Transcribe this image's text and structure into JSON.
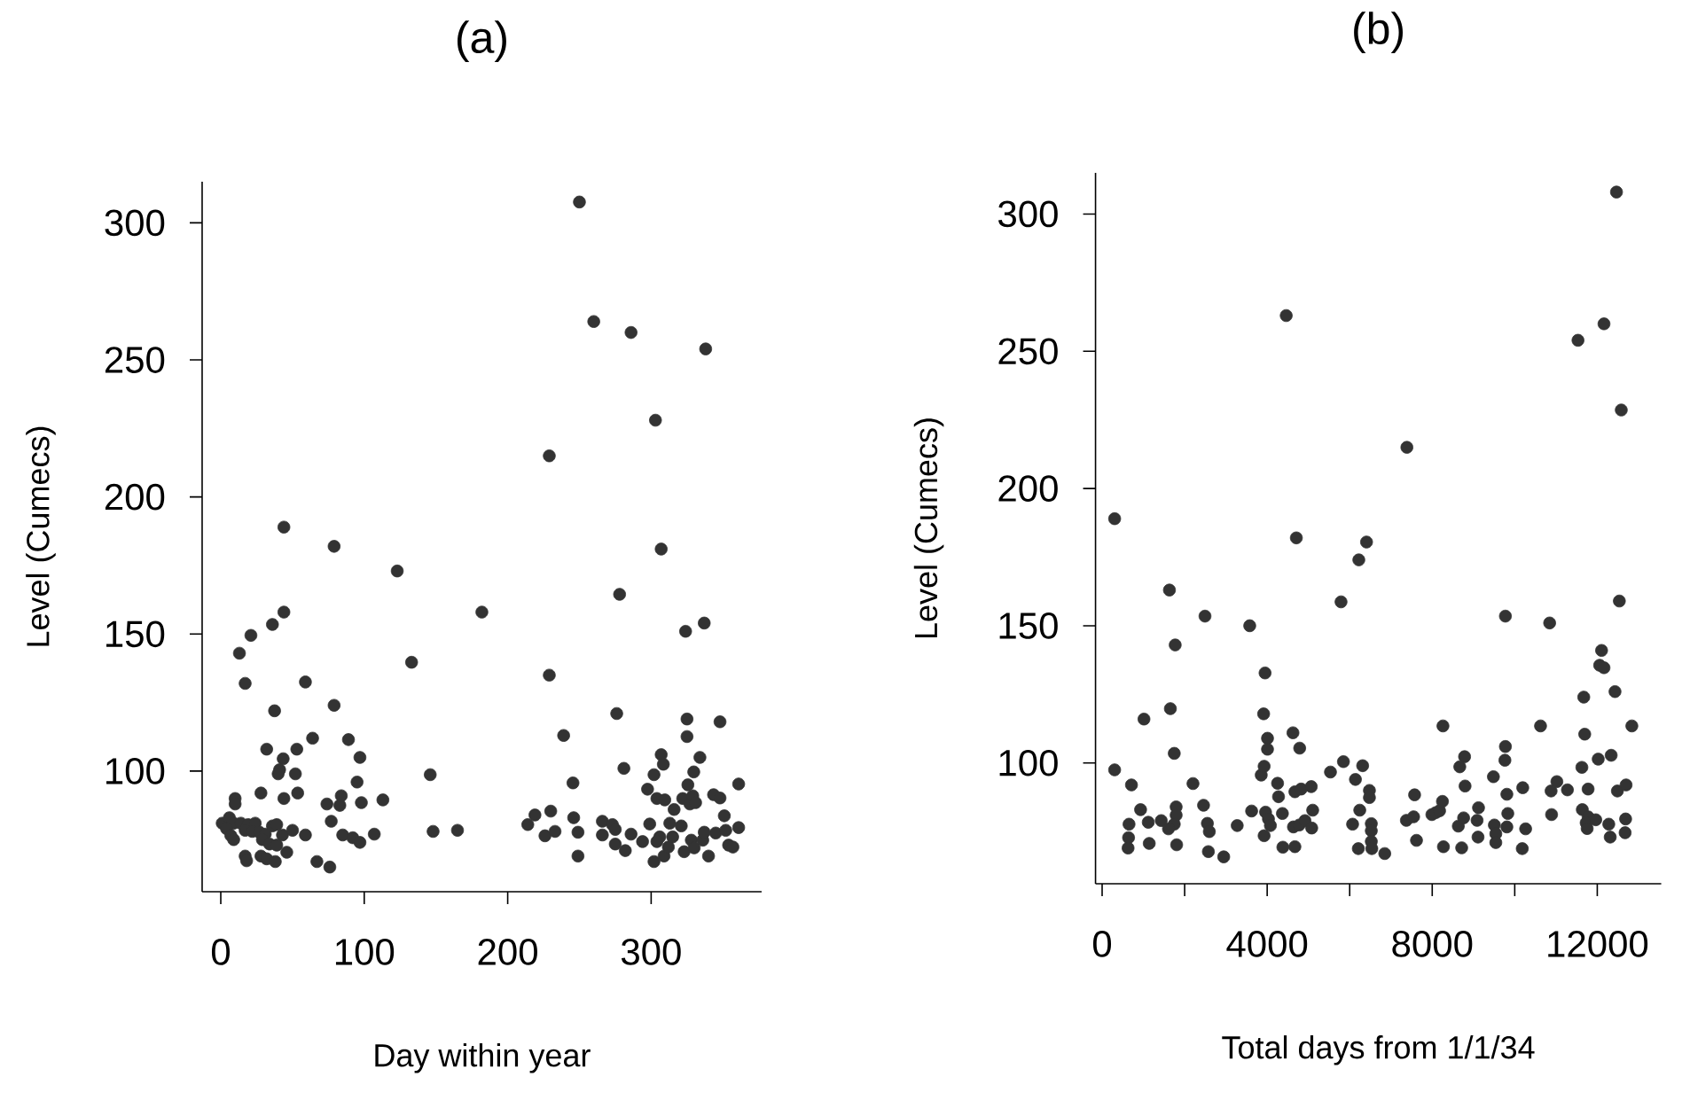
{
  "chart_data": [
    {
      "type": "scatter",
      "title": "(a)",
      "xlabel": "Day within year",
      "ylabel": "Level (Cumecs)",
      "color": "#333333",
      "marker": "circle",
      "xlim": [
        -13,
        377
      ],
      "ylim": [
        56,
        315
      ],
      "xticks": [
        0,
        100,
        200,
        300
      ],
      "yticks": [
        100,
        150,
        200,
        250,
        300
      ],
      "x": [
        250,
        260,
        286,
        338,
        303,
        229,
        44,
        79,
        123,
        307,
        278,
        44,
        182,
        36,
        21,
        13,
        17,
        59,
        37.5,
        79,
        133,
        229,
        239,
        276,
        324,
        337,
        325,
        348,
        325,
        32,
        64,
        53,
        89,
        43.5,
        41,
        40,
        52,
        97,
        95,
        146,
        245.5,
        281,
        307,
        308.5,
        302,
        334,
        329.7,
        325.6,
        361,
        28,
        10,
        10,
        44,
        53.6,
        74,
        84,
        83,
        98,
        113,
        77,
        59,
        107,
        85,
        92,
        97,
        67,
        76,
        148,
        165,
        1,
        6,
        9,
        4,
        7,
        9,
        14,
        19,
        24,
        17,
        22,
        27,
        31,
        36,
        39,
        29,
        34,
        39,
        43,
        46,
        50,
        17,
        18,
        28,
        32,
        38,
        214,
        219,
        230,
        226,
        233,
        246,
        249,
        249,
        266,
        273,
        275,
        266,
        275,
        282,
        286,
        294,
        299,
        297.5,
        304,
        309.5,
        306,
        304,
        302,
        309,
        312,
        313,
        315,
        316,
        321,
        322,
        327,
        329,
        331,
        323,
        328,
        330,
        336,
        337,
        340,
        343.5,
        348,
        345,
        351,
        352,
        354,
        357,
        361
      ],
      "values": [
        307.6,
        264,
        260,
        254,
        228,
        215,
        189,
        182,
        173,
        181,
        164.5,
        158,
        158,
        153.5,
        149.5,
        143,
        132,
        132.5,
        122,
        124,
        139.7,
        135,
        113,
        121,
        151,
        154,
        119,
        118,
        112.6,
        108,
        112,
        108,
        111.5,
        104.5,
        100.5,
        99,
        99,
        105,
        96,
        98.7,
        95.7,
        101,
        106,
        102.5,
        98.7,
        105,
        99.7,
        95,
        95.3,
        92,
        90,
        88,
        90,
        92,
        88,
        91,
        87.5,
        88.5,
        89.5,
        81.7,
        76.7,
        77,
        76.7,
        75.7,
        74,
        67,
        65,
        78,
        78.4,
        81,
        83,
        81,
        79,
        76.5,
        75,
        81,
        80.5,
        81,
        78.4,
        78,
        77.7,
        77,
        80,
        80.5,
        75,
        73.4,
        73,
        76.7,
        70.4,
        78.4,
        69,
        67.3,
        69,
        68,
        67,
        80.5,
        84,
        85.4,
        76.4,
        78,
        83,
        77.7,
        69,
        81.7,
        80.5,
        78.7,
        76.7,
        73.4,
        71,
        77,
        74.3,
        80.7,
        93.4,
        90,
        89.5,
        76,
        74.3,
        67,
        69,
        72.3,
        81,
        76,
        86,
        80,
        90,
        88,
        91,
        88.5,
        70.6,
        74.8,
        72,
        74.8,
        77.7,
        69,
        91.4,
        90.2,
        77.4,
        83.7,
        78.4,
        73,
        72.3,
        79.4
      ]
    },
    {
      "type": "scatter",
      "title": "(b)",
      "xlabel": "Total days from 1/1/34",
      "ylabel": "Level (Cumecs)",
      "color": "#333333",
      "marker": "circle",
      "xlim": [
        -160,
        13550
      ],
      "ylim": [
        56,
        315
      ],
      "xticks": [
        0,
        {
          "value": 2000,
          "label": null
        },
        4000,
        {
          "value": 6000,
          "label": null
        },
        8000,
        {
          "value": 10000,
          "label": null
        },
        12000
      ],
      "yticks": [
        100,
        150,
        200,
        250,
        300
      ],
      "x": [
        12466,
        4462,
        12163,
        11533,
        12582,
        7386,
        303,
        4707,
        6408,
        6221,
        1631,
        5790,
        12535,
        2493,
        3577,
        9774,
        10846,
        1771,
        3949,
        12104,
        12058,
        12163,
        11673,
        12430,
        1014,
        1654,
        3914,
        4008,
        4008,
        4625,
        4788,
        1748,
        8260,
        9774,
        9762,
        8784,
        10625,
        12838,
        11696,
        12023,
        12337,
        11627,
        303,
        711,
        2202,
        3856,
        3926,
        4252,
        4275,
        4672,
        4823,
        5068,
        5534,
        5848,
        6139,
        6314,
        6478,
        6478,
        8668,
        8796,
        9483,
        9809,
        10194,
        10881,
        11021,
        11277,
        11778,
        12488,
        12698,
        7573,
        932,
        652,
        641,
        629,
        1118,
        1142,
        1433,
        1794,
        1794,
        1748,
        1608,
        1806,
        2458,
        2551,
        2598,
        2575,
        2947,
        3274,
        3623,
        3961,
        4031,
        4078,
        3926,
        4369,
        4380,
        4672,
        4637,
        4777,
        4916,
        5103,
        5079,
        6070,
        6244,
        6524,
        6524,
        6524,
        6209,
        6536,
        6850,
        7374,
        7549,
        7619,
        7992,
        8085,
        8178,
        8248,
        8272,
        8633,
        8761,
        8714,
        9122,
        9110,
        9087,
        9506,
        9541,
        9541,
        9832,
        9809,
        10264,
        10182,
        10893,
        11638,
        11778,
        11731,
        11755,
        11964,
        12279,
        12314,
        12687,
        12675
      ],
      "values": [
        308,
        263,
        260,
        254,
        228.6,
        215,
        189,
        182,
        180.5,
        174,
        163,
        158.7,
        159,
        153.5,
        150,
        153.5,
        151,
        143,
        132.8,
        141,
        135.6,
        134.7,
        124,
        126,
        116,
        119.8,
        117.9,
        109,
        105,
        111,
        105.4,
        103.5,
        113.5,
        106,
        101,
        102.3,
        113.5,
        113.5,
        110.5,
        101.4,
        102.8,
        98.4,
        97.5,
        92,
        92.5,
        95.6,
        98.8,
        92.6,
        87.7,
        89.5,
        90.5,
        91.4,
        96.7,
        100.5,
        94,
        99,
        90,
        87.4,
        98.6,
        91.6,
        95,
        88.6,
        91,
        89.8,
        93.2,
        90.2,
        90.5,
        89.8,
        92,
        88.4,
        83,
        77.7,
        72.8,
        69,
        78.4,
        70.7,
        79,
        84,
        81,
        77.7,
        76,
        70.2,
        84.6,
        78,
        75,
        67.7,
        65.8,
        77.2,
        82.5,
        82.1,
        79.6,
        77.2,
        73.5,
        81.6,
        69.3,
        69.5,
        76.7,
        77.4,
        79,
        82.8,
        76.3,
        77.7,
        82.8,
        77.9,
        75.3,
        71.4,
        68.8,
        68.8,
        67,
        79.1,
        80.4,
        71.8,
        81.2,
        81.9,
        82.6,
        86,
        69.5,
        77,
        80,
        69.1,
        83.7,
        73,
        79.1,
        77.4,
        74.2,
        71,
        81.6,
        76.7,
        76,
        68.8,
        81.2,
        83,
        80.4,
        78.2,
        76.1,
        79.3,
        77.7,
        73,
        79.6,
        74.6
      ]
    }
  ]
}
